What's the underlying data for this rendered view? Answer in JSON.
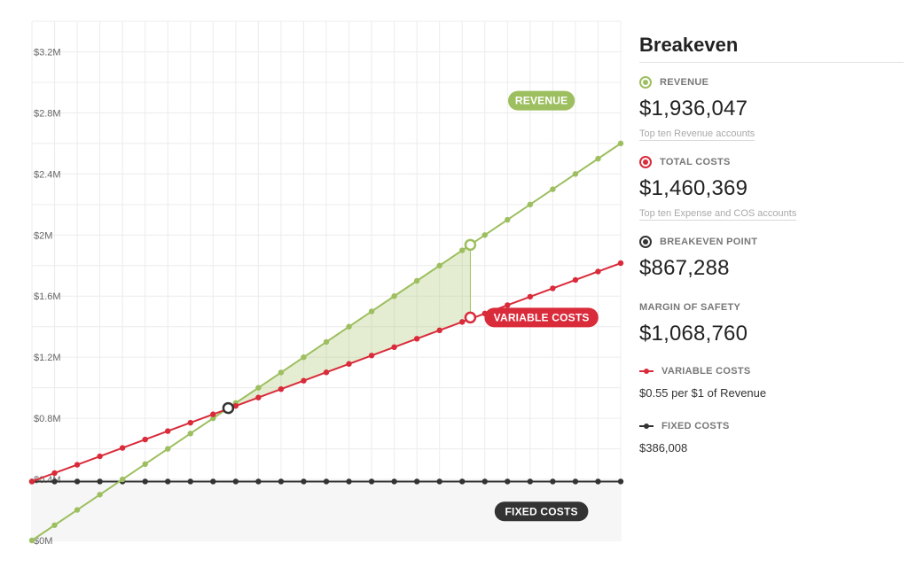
{
  "chart_data": {
    "type": "line",
    "x": [
      0,
      1,
      2,
      3,
      4,
      5,
      6,
      7,
      8,
      9,
      10,
      11,
      12,
      13,
      14,
      15,
      16,
      17,
      18,
      19,
      20,
      21,
      22,
      23,
      24,
      25,
      26
    ],
    "ylim": [
      0,
      3.4
    ],
    "yticks": [
      0,
      0.4,
      0.8,
      1.2,
      1.6,
      2.0,
      2.4,
      2.8,
      3.2
    ],
    "ytick_labels": [
      "$0M",
      "$0.4M",
      "$0.8M",
      "$1.2M",
      "$1.6M",
      "$2M",
      "$2.4M",
      "$2.8M",
      "$3.2M"
    ],
    "series": [
      {
        "name": "REVENUE",
        "color": "#9dbf5f",
        "values": [
          0.0,
          0.1,
          0.2,
          0.3,
          0.4,
          0.5,
          0.6,
          0.7,
          0.8,
          0.9,
          1.0,
          1.1,
          1.2,
          1.3,
          1.4,
          1.5,
          1.6,
          1.7,
          1.8,
          1.9,
          2.0,
          2.1,
          2.2,
          2.3,
          2.4,
          2.5,
          2.6
        ]
      },
      {
        "name": "VARIABLE COSTS",
        "color": "#d92b3a",
        "values": [
          0.386,
          0.441,
          0.496,
          0.551,
          0.606,
          0.661,
          0.716,
          0.771,
          0.826,
          0.881,
          0.936,
          0.991,
          1.046,
          1.101,
          1.156,
          1.211,
          1.266,
          1.321,
          1.376,
          1.431,
          1.486,
          1.541,
          1.596,
          1.651,
          1.706,
          1.761,
          1.816
        ]
      },
      {
        "name": "FIXED COSTS",
        "color": "#333333",
        "values": [
          0.386,
          0.386,
          0.386,
          0.386,
          0.386,
          0.386,
          0.386,
          0.386,
          0.386,
          0.386,
          0.386,
          0.386,
          0.386,
          0.386,
          0.386,
          0.386,
          0.386,
          0.386,
          0.386,
          0.386,
          0.386,
          0.386,
          0.386,
          0.386,
          0.386,
          0.386,
          0.386
        ]
      }
    ],
    "markers": [
      {
        "x": 8.67,
        "y": 0.867,
        "color": "#333333",
        "label": "breakeven"
      },
      {
        "x": 19.36,
        "y": 1.936,
        "color": "#9dbf5f",
        "label": "revenue"
      },
      {
        "x": 19.36,
        "y": 1.46,
        "color": "#d92b3a",
        "label": "total-costs"
      }
    ],
    "annotations": [
      {
        "text": "REVENUE",
        "color": "#9dbf5f",
        "x": 22.5,
        "y": 2.88
      },
      {
        "text": "VARIABLE COSTS",
        "color": "#d92b3a",
        "x": 22.5,
        "y": 1.46
      },
      {
        "text": "FIXED COSTS",
        "color": "#333333",
        "x": 22.5,
        "y": 0.19
      }
    ]
  },
  "panel": {
    "title": "Breakeven",
    "revenue": {
      "label": "REVENUE",
      "value": "$1,936,047",
      "link": "Top ten Revenue accounts",
      "color": "#9dbf5f"
    },
    "total_costs": {
      "label": "TOTAL COSTS",
      "value": "$1,460,369",
      "link": "Top ten Expense and COS accounts",
      "color": "#d92b3a"
    },
    "breakeven": {
      "label": "BREAKEVEN POINT",
      "value": "$867,288",
      "color": "#333333"
    },
    "margin": {
      "label": "MARGIN OF SAFETY",
      "value": "$1,068,760"
    },
    "variable_costs": {
      "label": "VARIABLE COSTS",
      "value": "$0.55 per $1 of Revenue",
      "color": "#d92b3a"
    },
    "fixed_costs": {
      "label": "FIXED COSTS",
      "value": "$386,008",
      "color": "#333333"
    }
  }
}
